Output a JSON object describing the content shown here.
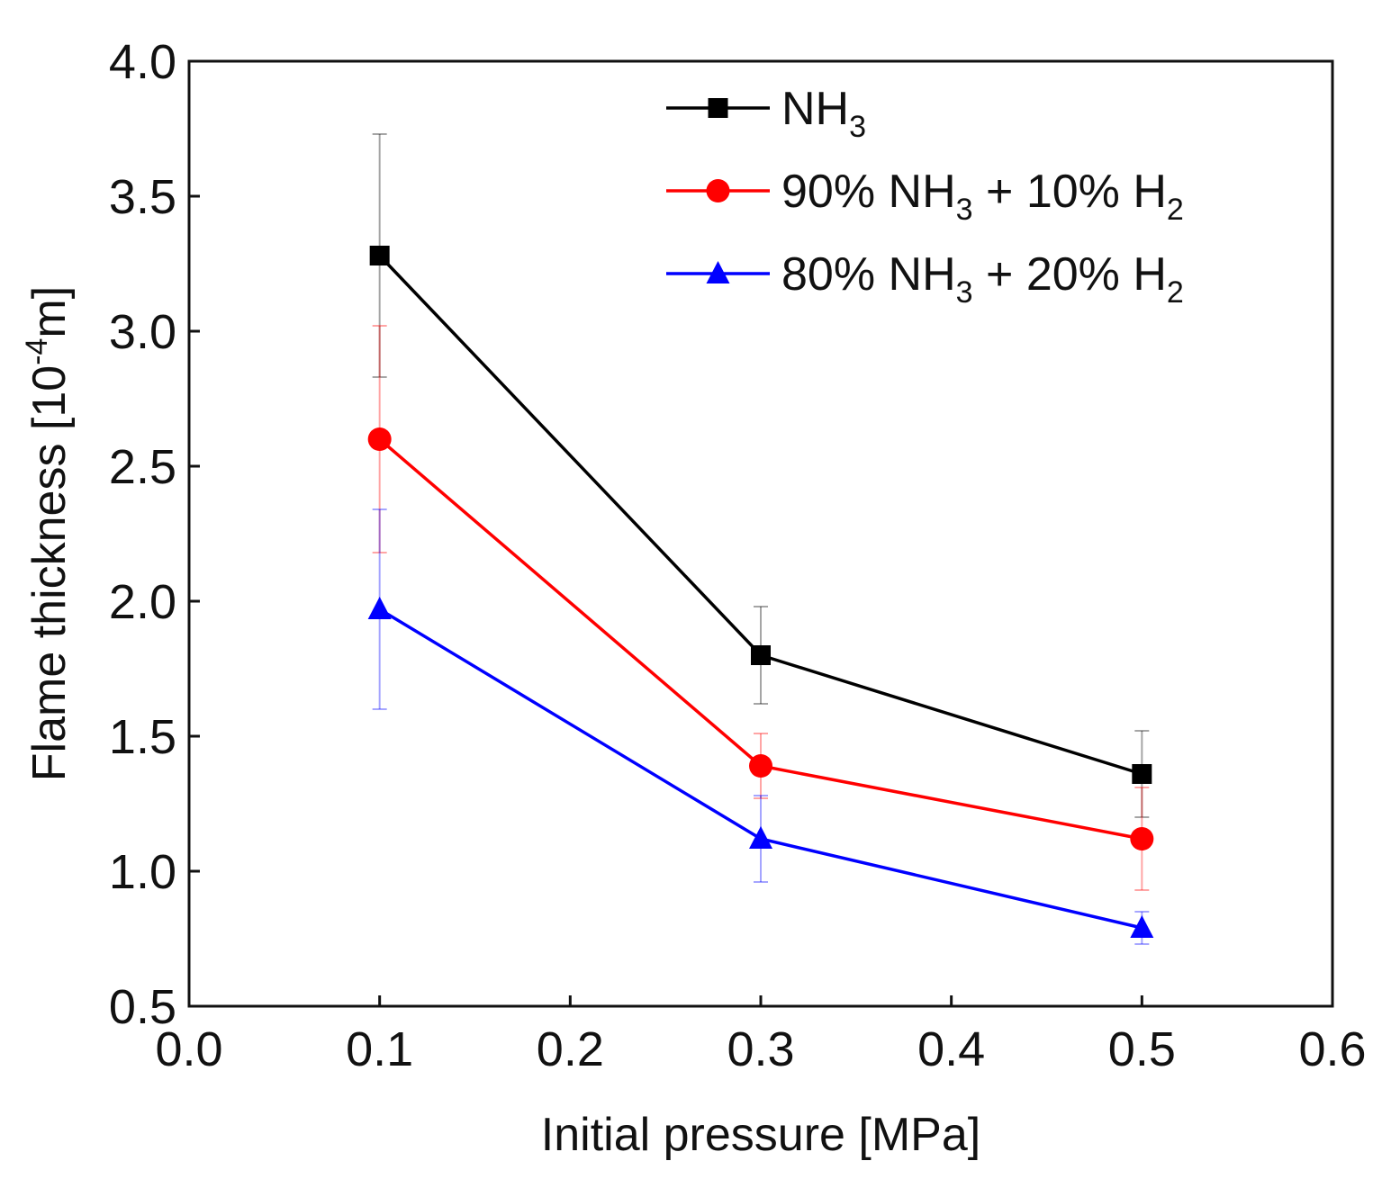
{
  "chart_data": {
    "type": "line",
    "title": "",
    "xlabel": "Initial pressure [MPa]",
    "ylabel": {
      "prefix": "Flame thickness [10",
      "sup": "-4",
      "suffix": "m]"
    },
    "xlim": [
      0.0,
      0.6
    ],
    "ylim": [
      0.5,
      4.0
    ],
    "x_ticks": [
      "0.0",
      "0.1",
      "0.2",
      "0.3",
      "0.4",
      "0.5",
      "0.6"
    ],
    "y_ticks": [
      "0.5",
      "1.0",
      "1.5",
      "2.0",
      "2.5",
      "3.0",
      "3.5",
      "4.0"
    ],
    "x": [
      0.1,
      0.3,
      0.5
    ],
    "legend_position": "top-right",
    "series": [
      {
        "name": "NH3",
        "legend": [
          [
            "",
            "NH"
          ],
          [
            "sub",
            "3"
          ]
        ],
        "color": "#000000",
        "marker": "square",
        "values": [
          3.28,
          1.8,
          1.36
        ],
        "errors": [
          0.45,
          0.18,
          0.16
        ]
      },
      {
        "name": "90% NH3 + 10% H2",
        "legend": [
          [
            "",
            "90% NH"
          ],
          [
            "sub",
            "3"
          ],
          [
            "",
            " + 10% H"
          ],
          [
            "sub",
            "2"
          ]
        ],
        "color": "#ff0000",
        "marker": "circle",
        "values": [
          2.6,
          1.39,
          1.12
        ],
        "errors": [
          0.42,
          0.12,
          0.19
        ]
      },
      {
        "name": "80% NH3 + 20% H2",
        "legend": [
          [
            "",
            "80% NH"
          ],
          [
            "sub",
            "3"
          ],
          [
            "",
            " + 20% H"
          ],
          [
            "sub",
            "2"
          ]
        ],
        "color": "#0000ff",
        "marker": "triangle",
        "values": [
          1.97,
          1.12,
          0.79
        ],
        "errors": [
          0.37,
          0.16,
          0.06
        ]
      }
    ]
  }
}
